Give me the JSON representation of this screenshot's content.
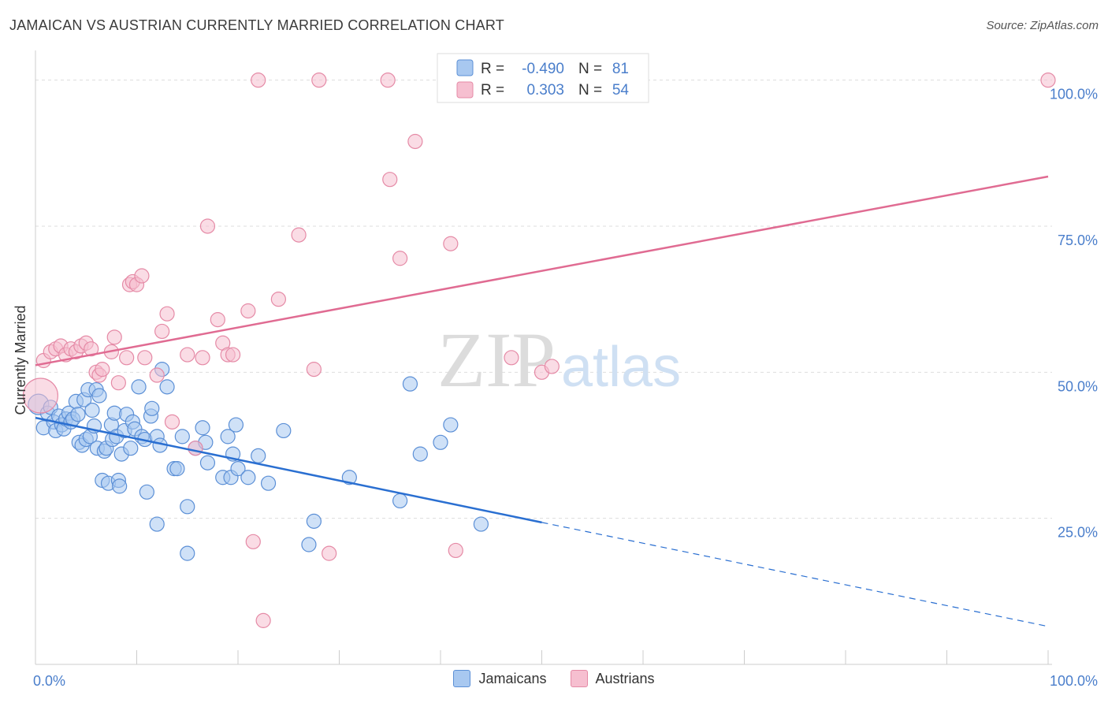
{
  "header": {
    "title": "JAMAICAN VS AUSTRIAN CURRENTLY MARRIED CORRELATION CHART",
    "source": "Source: ZipAtlas.com"
  },
  "watermark": {
    "part1": "ZIP",
    "part2": "atlas"
  },
  "colors": {
    "jamaicans_fill": "#a8c8f0",
    "jamaicans_stroke": "#5b8fd6",
    "jamaicans_line": "#2a6fd1",
    "austrians_fill": "#f6bfd0",
    "austrians_stroke": "#e58aa6",
    "austrians_line": "#e06b92",
    "axis_text": "#4a7ecb",
    "grid": "#dddddd"
  },
  "stats_legend": {
    "rows": [
      {
        "r_label": "R =",
        "r_value": "-0.490",
        "n_label": "N =",
        "n_value": "81"
      },
      {
        "r_label": "R =",
        "r_value": "0.303",
        "n_label": "N =",
        "n_value": "54"
      }
    ]
  },
  "bottom_legend": {
    "items": [
      "Jamaicans",
      "Austrians"
    ]
  },
  "chart_data": {
    "type": "scatter",
    "title": "JAMAICAN VS AUSTRIAN CURRENTLY MARRIED CORRELATION CHART",
    "xlabel": "",
    "ylabel": "Currently Married",
    "xlim": [
      0,
      100
    ],
    "ylim": [
      0,
      104
    ],
    "x_tick_labels": [
      "0.0%",
      "100.0%"
    ],
    "y_ticks": [
      25,
      50,
      75,
      100
    ],
    "y_tick_labels": [
      "25.0%",
      "50.0%",
      "75.0%",
      "100.0%"
    ],
    "grid": true,
    "legend": "bottom-center",
    "series": [
      {
        "name": "Jamaicans",
        "r": -0.49,
        "n": 81,
        "trend": {
          "x0": 0,
          "y0": 42.2,
          "x1": 50,
          "y1": 24.3,
          "dash_to_x": 100,
          "dash_to_y": 6.5
        },
        "points": [
          [
            0.3,
            44.5
          ],
          [
            0.8,
            40.5
          ],
          [
            1.2,
            43
          ],
          [
            1.5,
            44
          ],
          [
            1.8,
            41.5
          ],
          [
            2,
            40
          ],
          [
            2.3,
            42.5
          ],
          [
            2.6,
            41
          ],
          [
            2.8,
            40.3
          ],
          [
            3,
            42
          ],
          [
            3.3,
            43
          ],
          [
            3.5,
            41.5
          ],
          [
            3.7,
            42
          ],
          [
            4,
            45
          ],
          [
            4.2,
            42.8
          ],
          [
            4.3,
            38
          ],
          [
            4.6,
            37.5
          ],
          [
            4.8,
            45.3
          ],
          [
            5,
            38.5
          ],
          [
            5.2,
            47
          ],
          [
            5.4,
            39
          ],
          [
            5.6,
            43.5
          ],
          [
            5.8,
            40.8
          ],
          [
            6,
            47
          ],
          [
            6.1,
            37
          ],
          [
            6.3,
            46
          ],
          [
            6.6,
            31.5
          ],
          [
            6.8,
            36.5
          ],
          [
            7,
            37
          ],
          [
            7.2,
            31
          ],
          [
            7.5,
            41
          ],
          [
            7.6,
            38.5
          ],
          [
            7.8,
            43
          ],
          [
            8,
            39
          ],
          [
            8.2,
            31.5
          ],
          [
            8.3,
            30.5
          ],
          [
            8.5,
            36
          ],
          [
            8.8,
            40
          ],
          [
            9,
            42.8
          ],
          [
            9.4,
            37
          ],
          [
            9.6,
            41.5
          ],
          [
            9.8,
            40.3
          ],
          [
            10.2,
            47.5
          ],
          [
            10.5,
            39
          ],
          [
            10.8,
            38.5
          ],
          [
            11,
            29.5
          ],
          [
            11.4,
            42.5
          ],
          [
            11.5,
            43.8
          ],
          [
            12,
            39
          ],
          [
            12.3,
            37.5
          ],
          [
            12.5,
            50.5
          ],
          [
            13,
            47.5
          ],
          [
            13.7,
            33.5
          ],
          [
            14,
            33.5
          ],
          [
            14.5,
            39
          ],
          [
            15,
            27
          ],
          [
            15.8,
            37
          ],
          [
            16.5,
            40.5
          ],
          [
            16.8,
            38
          ],
          [
            17,
            34.5
          ],
          [
            18.5,
            32
          ],
          [
            19,
            39
          ],
          [
            19.3,
            32
          ],
          [
            19.5,
            36
          ],
          [
            19.8,
            41
          ],
          [
            20,
            33.5
          ],
          [
            21,
            32
          ],
          [
            22,
            35.7
          ],
          [
            23,
            31
          ],
          [
            24.5,
            40
          ],
          [
            27,
            20.5
          ],
          [
            27.5,
            24.5
          ],
          [
            31,
            32
          ],
          [
            36,
            28
          ],
          [
            37,
            48
          ],
          [
            38,
            36
          ],
          [
            40,
            38
          ],
          [
            41,
            41
          ],
          [
            44,
            24
          ],
          [
            12,
            24
          ],
          [
            15,
            19
          ]
        ]
      },
      {
        "name": "Austrians",
        "r": 0.303,
        "n": 54,
        "trend": {
          "x0": 0,
          "y0": 51.2,
          "x1": 100,
          "y1": 83.5
        },
        "points": [
          [
            0.5,
            46
          ],
          [
            0.8,
            52
          ],
          [
            1.5,
            53.5
          ],
          [
            2,
            54
          ],
          [
            2.5,
            54.5
          ],
          [
            3,
            53
          ],
          [
            3.5,
            54
          ],
          [
            4,
            53.5
          ],
          [
            4.5,
            54.5
          ],
          [
            5,
            55
          ],
          [
            5.5,
            54
          ],
          [
            6,
            50
          ],
          [
            6.3,
            49.5
          ],
          [
            6.6,
            50.5
          ],
          [
            7.5,
            53.5
          ],
          [
            7.8,
            56
          ],
          [
            8.2,
            48.2
          ],
          [
            9,
            52.5
          ],
          [
            9.3,
            65
          ],
          [
            9.6,
            65.5
          ],
          [
            10,
            65
          ],
          [
            10.5,
            66.5
          ],
          [
            10.8,
            52.5
          ],
          [
            12,
            49.5
          ],
          [
            12.5,
            57
          ],
          [
            13,
            60
          ],
          [
            13.5,
            41.5
          ],
          [
            15,
            53
          ],
          [
            15.8,
            37
          ],
          [
            16.5,
            52.5
          ],
          [
            17,
            75
          ],
          [
            18,
            59
          ],
          [
            18.5,
            55
          ],
          [
            19,
            53
          ],
          [
            19.5,
            53
          ],
          [
            21,
            60.5
          ],
          [
            21.5,
            21
          ],
          [
            22,
            100
          ],
          [
            22.5,
            7.5
          ],
          [
            24,
            62.5
          ],
          [
            26,
            73.5
          ],
          [
            27.5,
            50.5
          ],
          [
            28,
            100
          ],
          [
            29,
            19
          ],
          [
            35,
            83
          ],
          [
            34.8,
            100
          ],
          [
            36,
            69.5
          ],
          [
            37.5,
            89.5
          ],
          [
            41,
            72
          ],
          [
            41.5,
            19.5
          ],
          [
            47,
            52.5
          ],
          [
            50,
            50
          ],
          [
            51,
            51
          ],
          [
            100,
            100
          ]
        ]
      }
    ]
  }
}
